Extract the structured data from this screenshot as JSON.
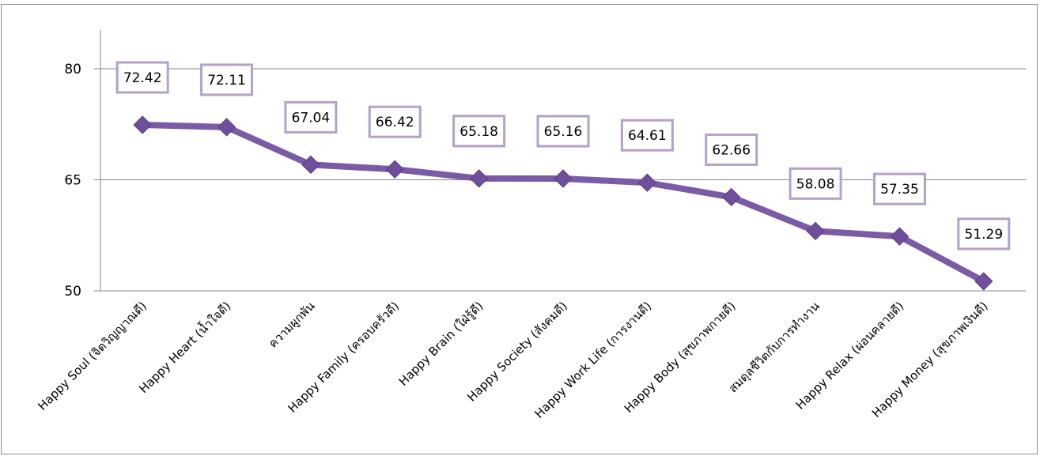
{
  "chart_data": {
    "type": "line",
    "categories": [
      "Happy Soul (จิตวิญญาณดี)",
      "Happy Heart (น้ำใจดี)",
      "ความผูกพัน",
      "Happy Family (ครอบครัวดี)",
      "Happy Brain (ใฝ่รู้ดี)",
      "Happy Society (สังคมดี)",
      "Happy Work Life (การงานดี)",
      "Happy Body (สุขภาพกายดี)",
      "สมดุลชีวิตกับการทำงาน",
      "Happy Relax (ผ่อนคลายดี)",
      "Happy Money (สุขภาพเงินดี)"
    ],
    "values": [
      72.42,
      72.11,
      67.04,
      66.42,
      65.18,
      65.16,
      64.61,
      62.66,
      58.08,
      57.35,
      51.29
    ],
    "value_labels": [
      "72.42",
      "72.11",
      "67.04",
      "66.42",
      "65.18",
      "65.16",
      "64.61",
      "62.66",
      "58.08",
      "57.35",
      "51.29"
    ],
    "yticks": [
      "50",
      "65",
      "80"
    ],
    "ylim": [
      50,
      80
    ],
    "grid": true,
    "legend": "none",
    "colors": {
      "line": "#7b5aa6",
      "marker": "#6f4e9b",
      "label_border": "#b3a2c7",
      "grid": "#868686"
    }
  }
}
